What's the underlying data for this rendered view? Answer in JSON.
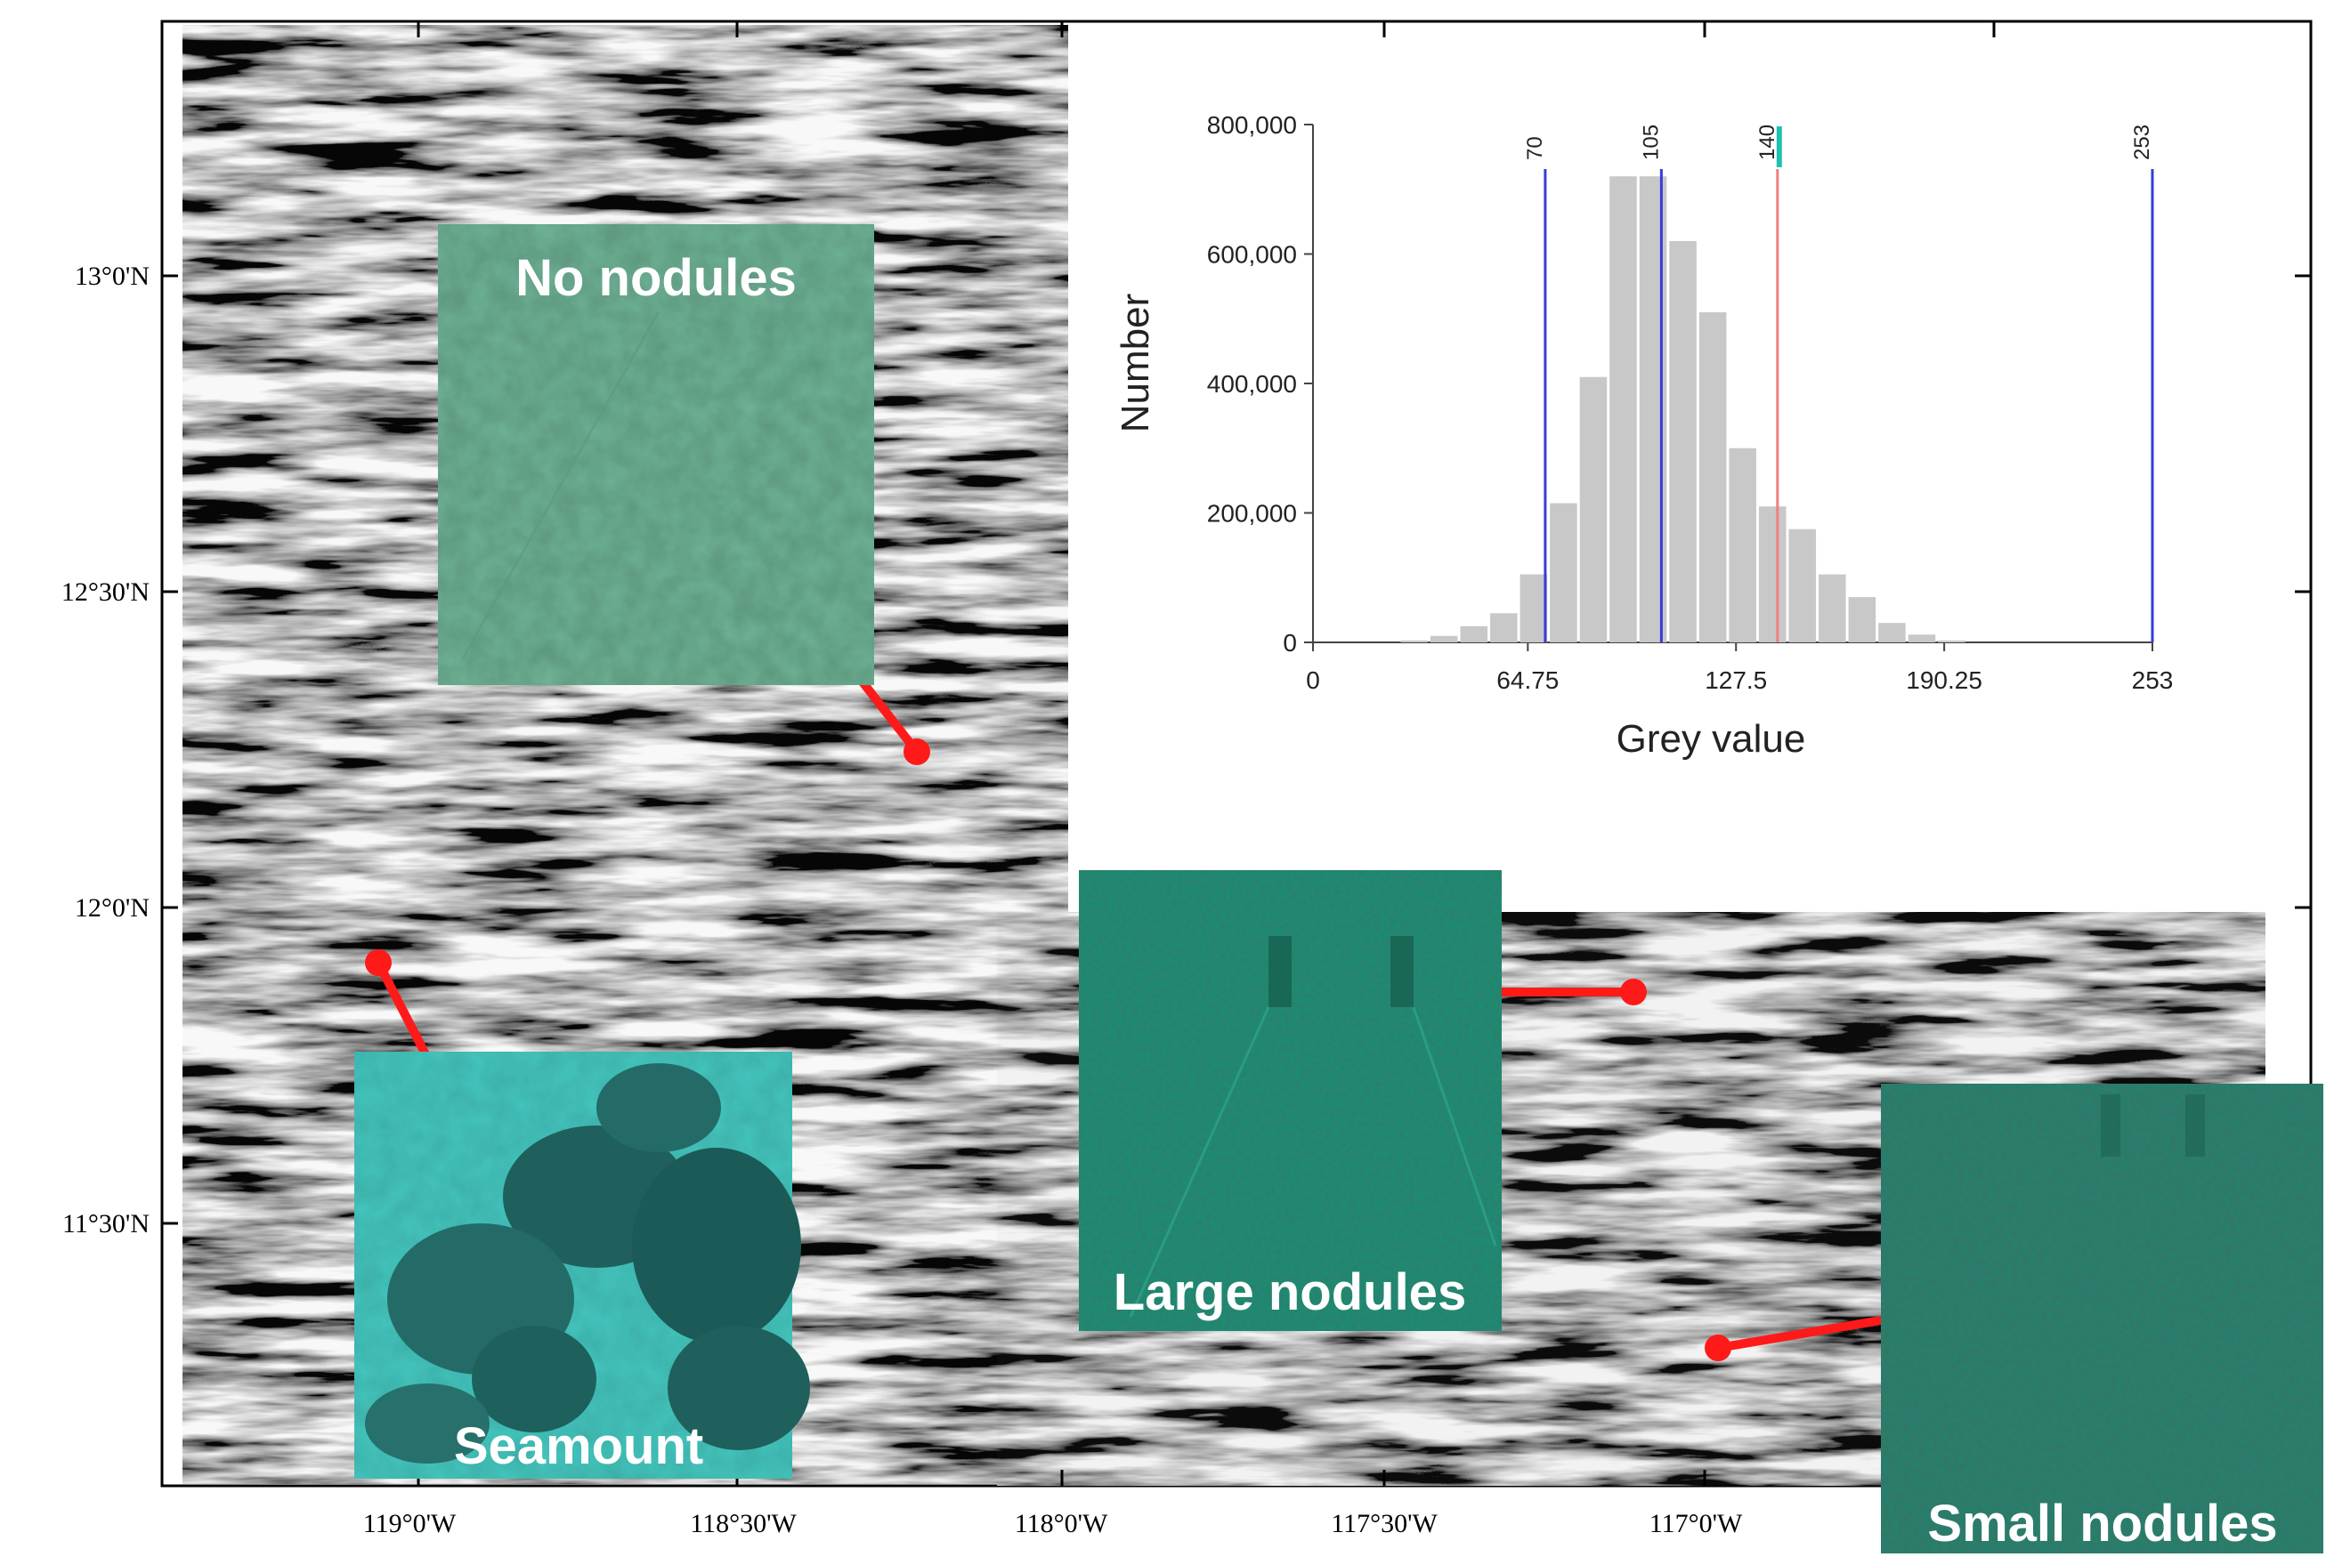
{
  "map": {
    "lat_labels": [
      "13°0'N",
      "12°30'N",
      "12°0'N",
      "11°30'N"
    ],
    "lon_labels": [
      "119°0'W",
      "118°30'W",
      "118°0'W",
      "117°30'W",
      "117°0'W"
    ]
  },
  "photos": {
    "no_nodules": "No nodules",
    "large_nodules": "Large nodules",
    "seamount": "Seamount",
    "small_nodules": "Small nodules"
  },
  "colors": {
    "bars": "#c8c8c8",
    "threshold_blue": "#3a3adc",
    "threshold_red": "#f08080",
    "threshold_teal": "#20c0b0",
    "marker_red": "#ff1a1a"
  },
  "chart_data": {
    "type": "bar",
    "title": "",
    "xlabel": "Grey value",
    "ylabel": "Number",
    "xlim": [
      0,
      253
    ],
    "ylim": [
      0,
      800000
    ],
    "x_ticks": [
      0,
      64.75,
      127.5,
      190.25,
      253
    ],
    "x_tick_labels": [
      "0",
      "64.75",
      "127.5",
      "190.25",
      "253"
    ],
    "y_ticks": [
      0,
      200000,
      400000,
      600000,
      800000
    ],
    "y_tick_labels": [
      "0",
      "200,000",
      "400,000",
      "600,000",
      "800,000"
    ],
    "bin_width": 9,
    "bin_starts": [
      26,
      35,
      44,
      53,
      62,
      71,
      80,
      89,
      98,
      107,
      116,
      125,
      134,
      143,
      152,
      161,
      170,
      179,
      188
    ],
    "values": [
      3000,
      10000,
      25000,
      45000,
      105000,
      215000,
      410000,
      720000,
      720000,
      620000,
      510000,
      300000,
      210000,
      175000,
      105000,
      70000,
      30000,
      12000,
      3000
    ],
    "thresholds": [
      {
        "value": 70,
        "label": "70",
        "color": "blue"
      },
      {
        "value": 105,
        "label": "105",
        "color": "blue"
      },
      {
        "value": 140,
        "label": "140",
        "color": "red"
      },
      {
        "value": 253,
        "label": "253",
        "color": "blue"
      }
    ]
  }
}
